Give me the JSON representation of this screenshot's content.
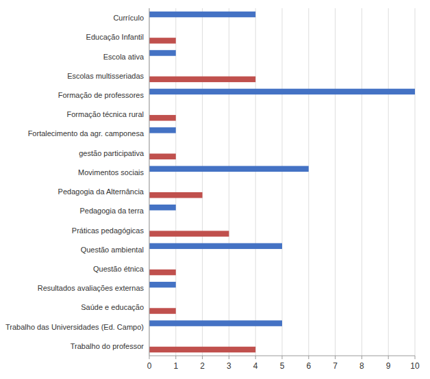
{
  "chart_data": {
    "type": "bar",
    "orientation": "horizontal",
    "categories": [
      "Currículo",
      "Educação Infantil",
      "Escola ativa",
      "Escolas multisseriadas",
      "Formação de professores",
      "Formação técnica rural",
      "Fortalecimento da agr. camponesa",
      "gestão participativa",
      "Movimentos sociais",
      "Pedagogia da Alternância",
      "Pedagogia da terra",
      "Práticas pedagógicas",
      "Questão ambiental",
      "Questão étnica",
      "Resultados avaliações externas",
      "Saúde e educação",
      "Trabalho das Universidades (Ed. Campo)",
      "Trabalho do professor"
    ],
    "series": [
      {
        "color": "#4472C4",
        "values": [
          4,
          0,
          1,
          0,
          10,
          0,
          1,
          0,
          6,
          0,
          1,
          0,
          5,
          0,
          1,
          0,
          5,
          0
        ]
      },
      {
        "color": "#C0504D",
        "values": [
          0,
          1,
          0,
          4,
          0,
          1,
          0,
          1,
          0,
          2,
          0,
          3,
          0,
          1,
          0,
          1,
          0,
          4
        ]
      }
    ],
    "xlim": [
      0,
      10
    ],
    "xticks": [
      0,
      1,
      2,
      3,
      4,
      5,
      6,
      7,
      8,
      9,
      10
    ],
    "grid": true
  }
}
